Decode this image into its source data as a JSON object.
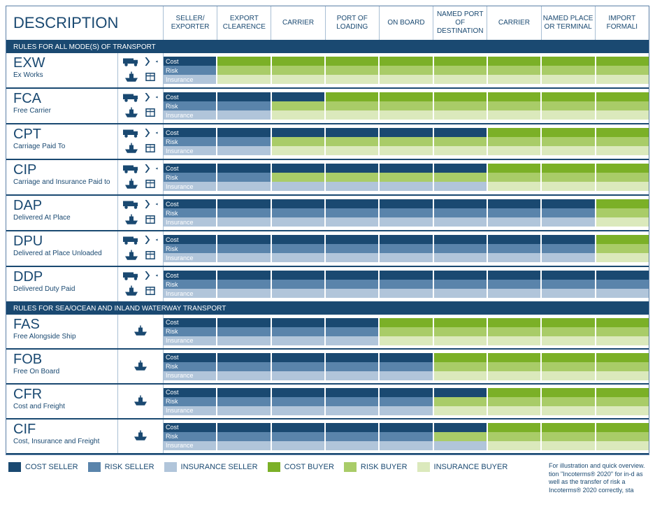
{
  "colors": {
    "cost_seller": "#1a4971",
    "risk_seller": "#5a84ab",
    "insurance_seller": "#b1c5da",
    "cost_buyer": "#7bb027",
    "risk_buyer": "#a9cc68",
    "insurance_buyer": "#dbe9bc",
    "border": "#a9bfd4",
    "text_primary": "#1a4971"
  },
  "header": {
    "description": "DESCRIPTION",
    "columns": [
      "SELLER/ EXPORTER",
      "EXPORT CLEARENCE",
      "CARRIER",
      "PORT OF LOADING",
      "ON BOARD",
      "NAMED PORT OF DESTINATION",
      "CARRIER",
      "NAMED PLACE OR TERMINAL",
      "IMPORT FORMALI"
    ]
  },
  "sections": [
    {
      "title": "RULES FOR ALL MODE(S) OF TRANSPORT",
      "start": 0,
      "end": 7
    },
    {
      "title": "RULES FOR SEA/OCEAN AND INLAND WATERWAY TRANSPORT",
      "start": 7,
      "end": 11
    }
  ],
  "bar_labels": [
    "Cost",
    "Risk",
    "Insurance"
  ],
  "terms": [
    {
      "code": "EXW",
      "name": "Ex Works",
      "icons": [
        "truck",
        "plane",
        "ship",
        "box"
      ],
      "cost": 1,
      "risk": 1,
      "insurance": 1
    },
    {
      "code": "FCA",
      "name": "Free Carrier",
      "icons": [
        "truck",
        "plane",
        "ship",
        "box"
      ],
      "cost": 3,
      "risk": 2,
      "insurance": 2
    },
    {
      "code": "CPT",
      "name": "Carriage Paid To",
      "icons": [
        "truck",
        "plane",
        "ship",
        "box"
      ],
      "cost": 6,
      "risk": 2,
      "insurance": 2
    },
    {
      "code": "CIP",
      "name": "Carriage and Insurance Paid to",
      "icons": [
        "truck",
        "plane",
        "ship",
        "box"
      ],
      "cost": 6,
      "risk": 2,
      "insurance": 6
    },
    {
      "code": "DAP",
      "name": "Delivered At Place",
      "icons": [
        "truck",
        "plane",
        "ship",
        "box"
      ],
      "cost": 8,
      "risk": 8,
      "insurance": 8
    },
    {
      "code": "DPU",
      "name": "Delivered at Place Unloaded",
      "icons": [
        "truck",
        "plane",
        "ship",
        "box"
      ],
      "cost": 8,
      "risk": 8,
      "insurance": 8
    },
    {
      "code": "DDP",
      "name": "Delivered Duty Paid",
      "icons": [
        "truck",
        "plane",
        "ship",
        "box"
      ],
      "cost": 9,
      "risk": 9,
      "insurance": 9
    },
    {
      "code": "FAS",
      "name": "Free Alongside Ship",
      "icons": [
        "ship"
      ],
      "cost": 4,
      "risk": 4,
      "insurance": 4
    },
    {
      "code": "FOB",
      "name": "Free On Board",
      "icons": [
        "ship"
      ],
      "cost": 5,
      "risk": 5,
      "insurance": 5
    },
    {
      "code": "CFR",
      "name": "Cost and Freight",
      "icons": [
        "ship"
      ],
      "cost": 6,
      "risk": 5,
      "insurance": 5
    },
    {
      "code": "CIF",
      "name": "Cost, Insurance and Freight",
      "icons": [
        "ship"
      ],
      "cost": 6,
      "risk": 5,
      "insurance": 6
    }
  ],
  "legend": [
    {
      "label": "COST SELLER",
      "color": "#1a4971"
    },
    {
      "label": "RISK SELLER",
      "color": "#5a84ab"
    },
    {
      "label": "INSURANCE SELLER",
      "color": "#b1c5da"
    },
    {
      "label": "COST BUYER",
      "color": "#7bb027"
    },
    {
      "label": "RISK BUYER",
      "color": "#a9cc68"
    },
    {
      "label": "INSURANCE BUYER",
      "color": "#dbe9bc"
    }
  ],
  "footnote": "For illustration and quick overview. tion \"Incoterms® 2020\" for in-d as well as the transfer of risk a Incoterms® 2020 correctly, sta",
  "total_cols": 9
}
